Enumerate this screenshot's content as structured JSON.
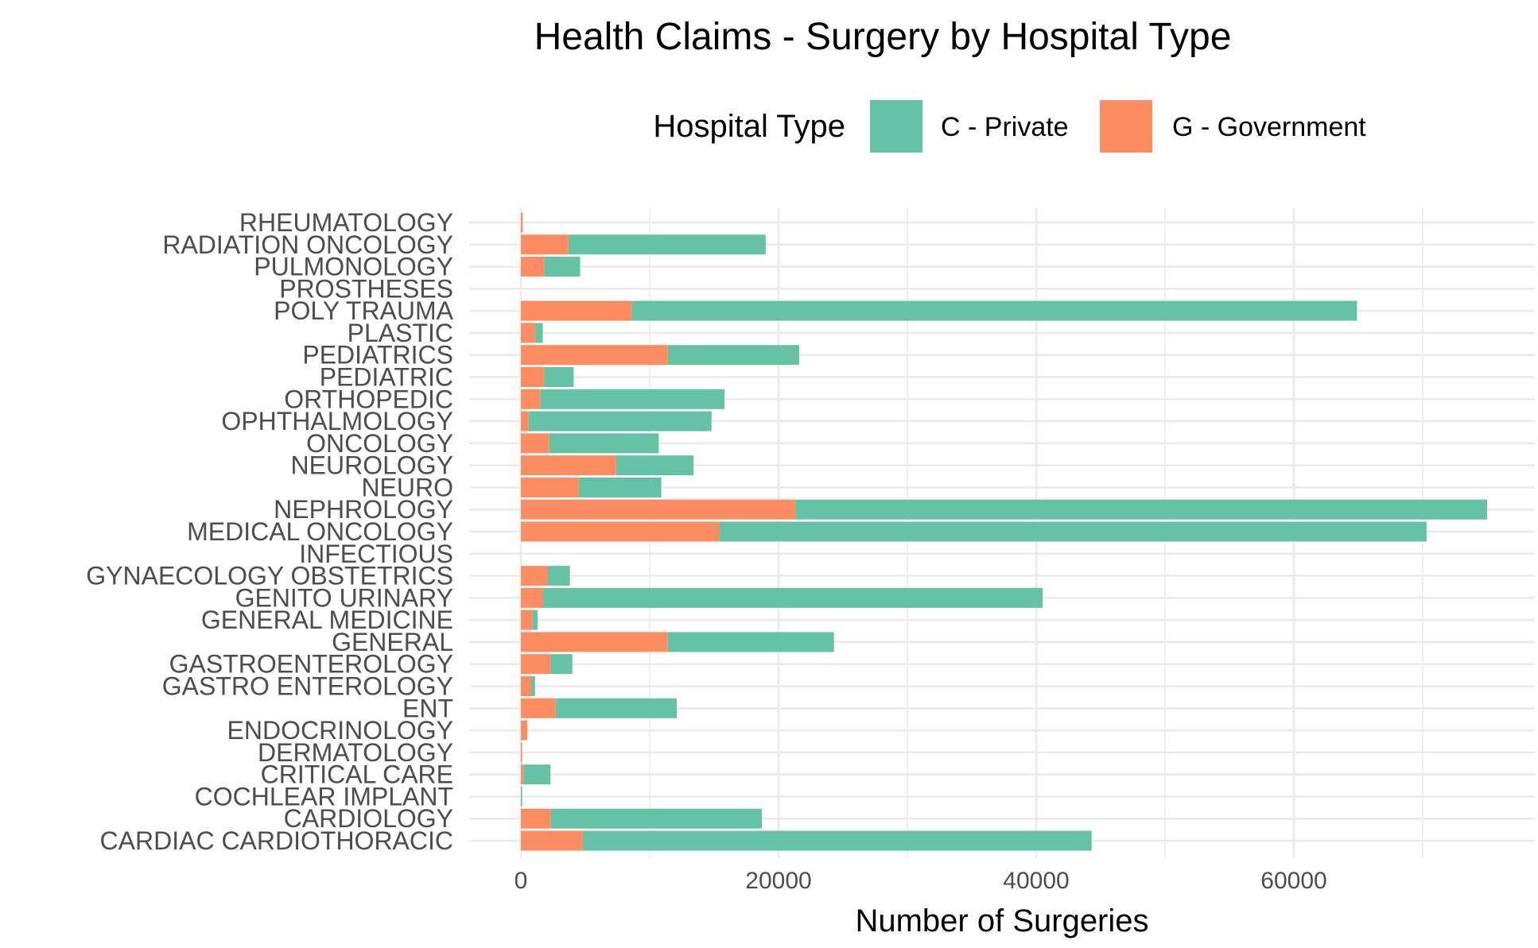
{
  "chart_data": {
    "type": "bar",
    "orientation": "horizontal",
    "stacked": true,
    "title": "Health Claims - Surgery by Hospital Type",
    "xlabel": "Number of Surgeries",
    "ylabel": "",
    "xlim": [
      0,
      78000
    ],
    "x_ticks": [
      0,
      20000,
      40000,
      60000
    ],
    "grid": true,
    "legend": {
      "title": "Hospital Type",
      "position": "top"
    },
    "categories": [
      "CARDIAC  CARDIOTHORACIC",
      "CARDIOLOGY",
      "COCHLEAR IMPLANT",
      "CRITICAL CARE",
      "DERMATOLOGY",
      "ENDOCRINOLOGY",
      "ENT",
      "GASTRO ENTEROLOGY",
      "GASTROENTEROLOGY",
      "GENERAL",
      "GENERAL MEDICINE",
      "GENITO URINARY",
      "GYNAECOLOGY  OBSTETRICS",
      "INFECTIOUS",
      "MEDICAL ONCOLOGY",
      "NEPHROLOGY",
      "NEURO",
      "NEUROLOGY",
      "ONCOLOGY",
      "OPHTHALMOLOGY",
      "ORTHOPEDIC",
      "PEDIATRIC",
      "PEDIATRICS",
      "PLASTIC",
      "POLY TRAUMA",
      "PROSTHESES",
      "PULMONOLOGY",
      "RADIATION ONCOLOGY",
      "RHEUMATOLOGY"
    ],
    "series": [
      {
        "name": "G - Government",
        "color": "#fc8d62",
        "values": [
          4800,
          2300,
          0,
          200,
          100,
          500,
          2700,
          800,
          2300,
          11400,
          900,
          1700,
          2100,
          0,
          15400,
          21300,
          4500,
          7400,
          2200,
          600,
          1500,
          1800,
          11400,
          1100,
          8600,
          0,
          1800,
          3700,
          150
        ]
      },
      {
        "name": "C - Private",
        "color": "#66c2a5",
        "values": [
          39500,
          16400,
          100,
          2100,
          0,
          0,
          9400,
          300,
          1700,
          12900,
          400,
          38800,
          1700,
          0,
          54900,
          53700,
          6400,
          6000,
          8500,
          14200,
          14300,
          2300,
          10200,
          600,
          56300,
          0,
          2800,
          15300,
          0
        ]
      }
    ]
  }
}
